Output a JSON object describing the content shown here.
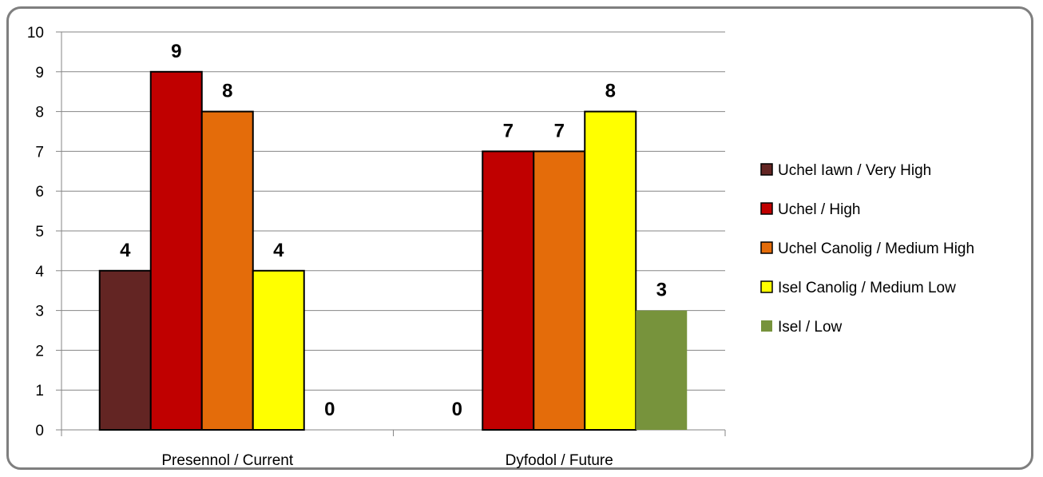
{
  "chart_data": {
    "type": "bar",
    "title": "",
    "xlabel": "",
    "ylabel": "",
    "ylim": [
      0,
      10
    ],
    "yticks": [
      0,
      1,
      2,
      3,
      4,
      5,
      6,
      7,
      8,
      9,
      10
    ],
    "grid": true,
    "legend_position": "right",
    "categories": [
      "Presennol / Current",
      "Dyfodol / Future"
    ],
    "series": [
      {
        "name": "Uchel Iawn / Very High",
        "color": "#632523",
        "values": [
          4,
          0
        ]
      },
      {
        "name": "Uchel / High",
        "color": "#c00000",
        "values": [
          9,
          7
        ]
      },
      {
        "name": "Uchel Canolig / Medium High",
        "color": "#e46c0a",
        "values": [
          8,
          7
        ]
      },
      {
        "name": "Isel Canolig / Medium Low",
        "color": "#ffff00",
        "values": [
          4,
          8
        ]
      },
      {
        "name": "Isel / Low",
        "color": "#77933c",
        "values": [
          0,
          3
        ]
      }
    ]
  }
}
